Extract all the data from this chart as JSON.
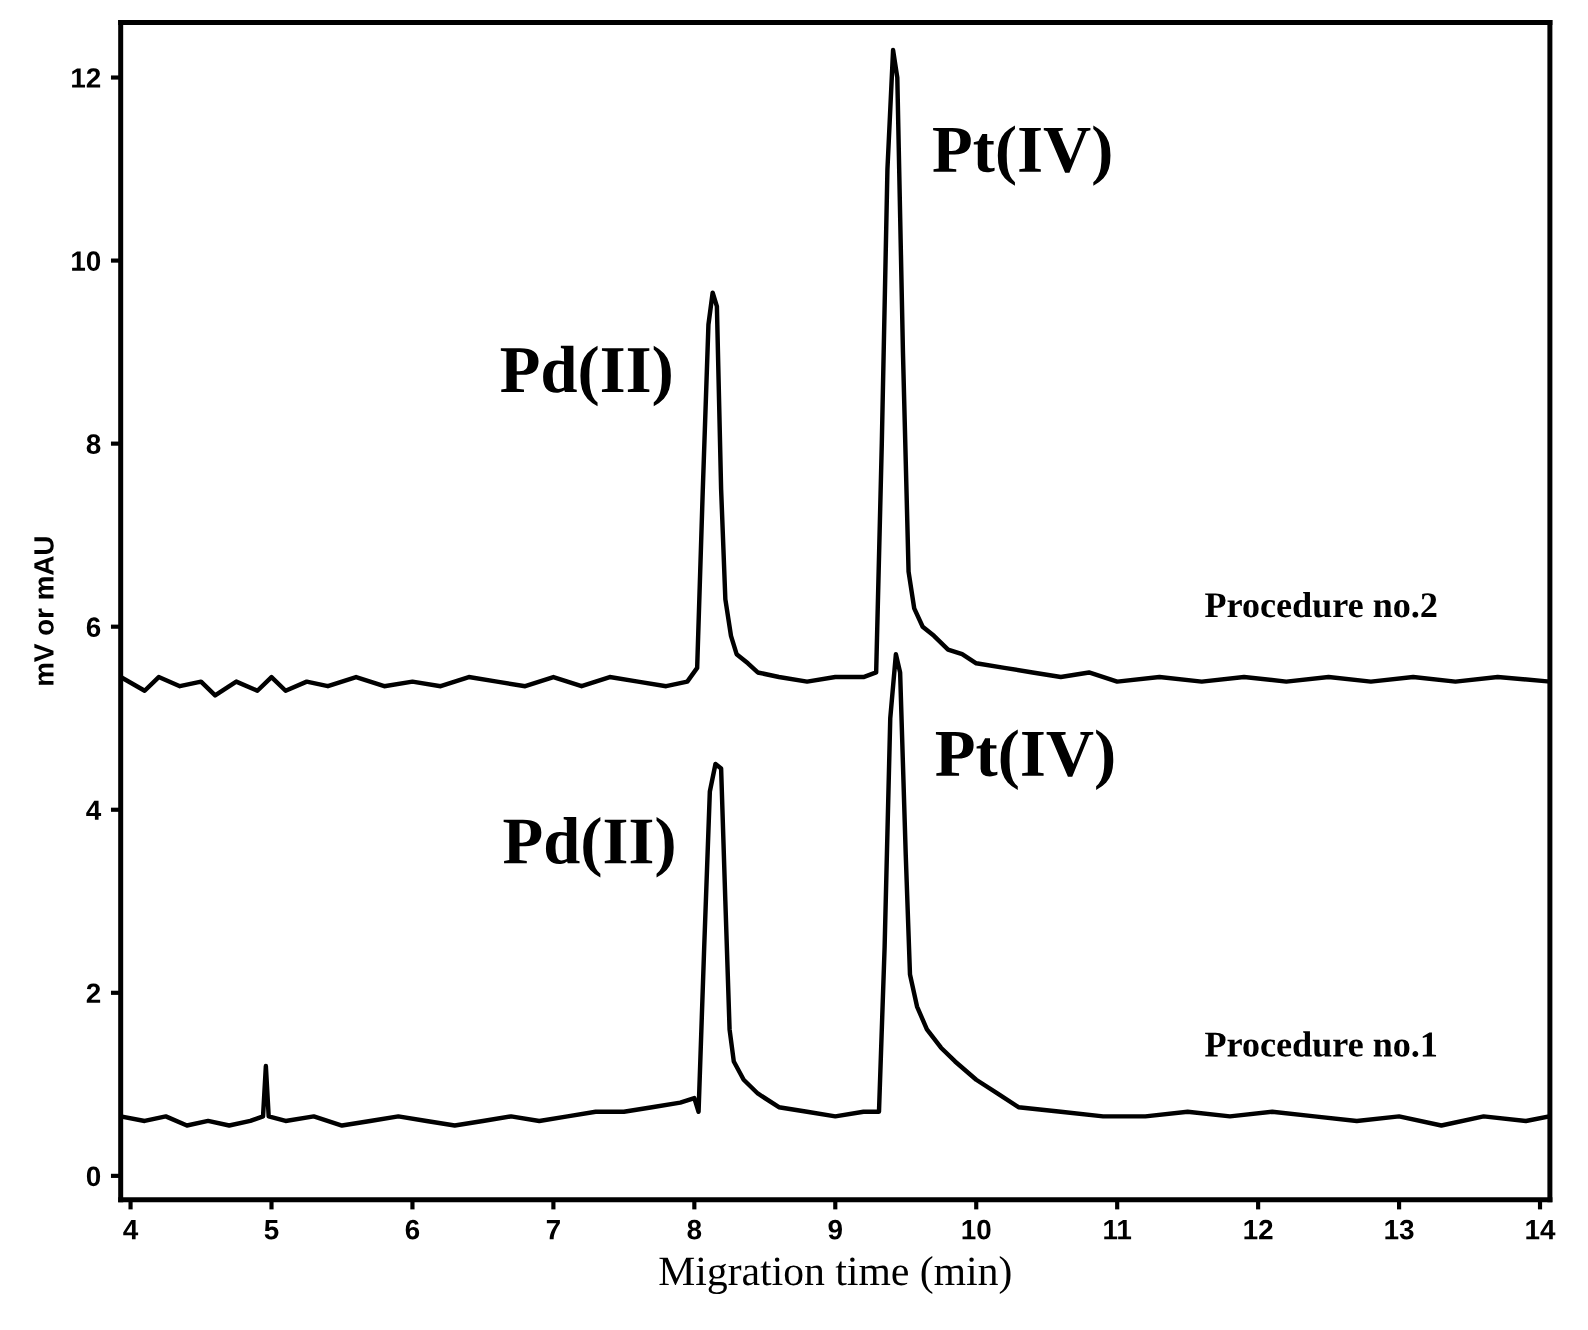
{
  "chart_data": {
    "type": "line",
    "xlabel": "Migration time (min)",
    "ylabel": "mV or mAU",
    "xlim": [
      3.93,
      14.07
    ],
    "ylim": [
      -0.26,
      12.6
    ],
    "xticks": [
      4,
      5,
      6,
      7,
      8,
      9,
      10,
      11,
      12,
      13,
      14
    ],
    "yticks": [
      0,
      2,
      4,
      6,
      8,
      10,
      12
    ],
    "grid": false,
    "marker": "none",
    "line_style": "solid",
    "series": [
      {
        "name": "Procedure no.2",
        "color": "#000000",
        "x": [
          3.93,
          4.1,
          4.2,
          4.35,
          4.5,
          4.6,
          4.75,
          4.9,
          5.0,
          5.1,
          5.25,
          5.4,
          5.6,
          5.8,
          6.0,
          6.2,
          6.4,
          6.6,
          6.8,
          7.0,
          7.2,
          7.4,
          7.6,
          7.8,
          7.95,
          8.02,
          8.06,
          8.1,
          8.13,
          8.16,
          8.19,
          8.22,
          8.26,
          8.3,
          8.38,
          8.45,
          8.6,
          8.8,
          9.0,
          9.2,
          9.29,
          9.33,
          9.37,
          9.41,
          9.44,
          9.48,
          9.52,
          9.56,
          9.62,
          9.7,
          9.8,
          9.9,
          10.0,
          10.2,
          10.4,
          10.6,
          10.8,
          11.0,
          11.3,
          11.6,
          11.9,
          12.2,
          12.5,
          12.8,
          13.1,
          13.4,
          13.7,
          14.07
        ],
        "values": [
          5.45,
          5.3,
          5.45,
          5.35,
          5.4,
          5.25,
          5.4,
          5.3,
          5.45,
          5.3,
          5.4,
          5.35,
          5.45,
          5.35,
          5.4,
          5.35,
          5.45,
          5.4,
          5.35,
          5.45,
          5.35,
          5.45,
          5.4,
          5.35,
          5.4,
          5.55,
          7.5,
          9.3,
          9.65,
          9.5,
          7.5,
          6.3,
          5.9,
          5.7,
          5.6,
          5.5,
          5.45,
          5.4,
          5.45,
          5.45,
          5.5,
          8.0,
          11.0,
          12.3,
          12.0,
          9.0,
          6.6,
          6.2,
          6.0,
          5.9,
          5.75,
          5.7,
          5.6,
          5.55,
          5.5,
          5.45,
          5.5,
          5.4,
          5.45,
          5.4,
          5.45,
          5.4,
          5.45,
          5.4,
          5.45,
          5.4,
          5.45,
          5.4
        ]
      },
      {
        "name": "Procedure no.1",
        "color": "#000000",
        "x": [
          3.93,
          4.1,
          4.25,
          4.4,
          4.55,
          4.7,
          4.85,
          4.94,
          4.96,
          4.98,
          5.1,
          5.3,
          5.5,
          5.7,
          5.9,
          6.1,
          6.3,
          6.5,
          6.7,
          6.9,
          7.1,
          7.3,
          7.5,
          7.7,
          7.9,
          8.0,
          8.03,
          8.07,
          8.11,
          8.15,
          8.19,
          8.22,
          8.25,
          8.28,
          8.35,
          8.45,
          8.6,
          8.8,
          9.0,
          9.2,
          9.31,
          9.35,
          9.39,
          9.43,
          9.46,
          9.5,
          9.53,
          9.58,
          9.65,
          9.75,
          9.85,
          10.0,
          10.15,
          10.3,
          10.6,
          10.9,
          11.2,
          11.5,
          11.8,
          12.1,
          12.4,
          12.7,
          13.0,
          13.3,
          13.6,
          13.9,
          14.07
        ],
        "values": [
          0.65,
          0.6,
          0.65,
          0.55,
          0.6,
          0.55,
          0.6,
          0.65,
          1.2,
          0.65,
          0.6,
          0.65,
          0.55,
          0.6,
          0.65,
          0.6,
          0.55,
          0.6,
          0.65,
          0.6,
          0.65,
          0.7,
          0.7,
          0.75,
          0.8,
          0.85,
          0.7,
          2.5,
          4.2,
          4.5,
          4.45,
          3.0,
          1.6,
          1.25,
          1.05,
          0.9,
          0.75,
          0.7,
          0.65,
          0.7,
          0.7,
          2.5,
          5.0,
          5.7,
          5.5,
          3.5,
          2.2,
          1.85,
          1.6,
          1.4,
          1.25,
          1.05,
          0.9,
          0.75,
          0.7,
          0.65,
          0.65,
          0.7,
          0.65,
          0.7,
          0.65,
          0.6,
          0.65,
          0.55,
          0.65,
          0.6,
          0.65
        ]
      }
    ],
    "annotations": [
      {
        "text": "Pd(II)",
        "x": 8.13,
        "y": 9.65
      },
      {
        "text": "Pt(IV)",
        "x": 9.41,
        "y": 12.3
      },
      {
        "text": "Pd(II)",
        "x": 8.15,
        "y": 4.5
      },
      {
        "text": "Pt(IV)",
        "x": 9.43,
        "y": 5.7
      }
    ]
  }
}
